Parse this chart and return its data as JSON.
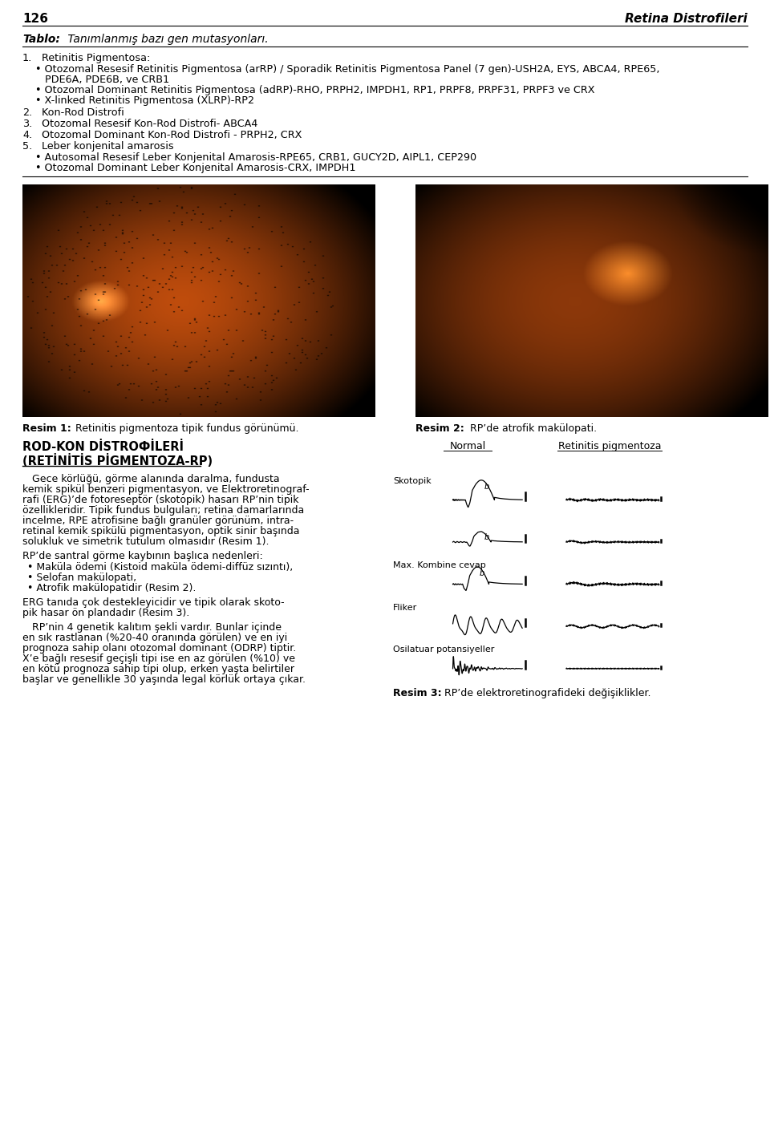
{
  "page_num": "126",
  "page_title": "Retina Distrofileri",
  "table_title_bold": "Tablo:",
  "table_title_rest": " Tanımlanmış bazı gen mutasyonları.",
  "numbered_items": [
    {
      "num": "1.",
      "title": "  Retinitis Pigmentosa:",
      "bullets": [
        "• Otozomal Resesif Retinitis Pigmentosa (arRP) / Sporadik Retinitis Pigmentosa Panel (7 gen)-USH2A, EYS, ABCA4, RPE65,",
        "   PDE6A, PDE6B, ve CRB1",
        "• Otozomal Dominant Retinitis Pigmentosa (adRP)-RHO, PRPH2, IMPDH1, RP1, PRPF8, PRPF31, PRPF3 ve CRX",
        "• X-linked Retinitis Pigmentosa (XLRP)-RP2"
      ]
    },
    {
      "num": "2.",
      "title": "  Kon-Rod Distrofi",
      "bullets": []
    },
    {
      "num": "3.",
      "title": "  Otozomal Resesif Kon-Rod Distrofi- ABCA4",
      "bullets": []
    },
    {
      "num": "4.",
      "title": "  Otozomal Dominant Kon-Rod Distrofi - PRPH2, CRX",
      "bullets": []
    },
    {
      "num": "5.",
      "title": "  Leber konjenital amarosis",
      "bullets": [
        "• Autosomal Resesif Leber Konjenital Amarosis-RPE65, CRB1, GUCY2D, AIPL1, CEP290",
        "• Otozomal Dominant Leber Konjenital Amarosis-CRX, IMPDH1"
      ]
    }
  ],
  "resim1_caption_bold": "Resim 1:",
  "resim1_caption_rest": " Retinitis pigmentoza tipik fundus görünümü.",
  "resim2_caption_bold": "Resim 2:",
  "resim2_caption_rest": " RP’de atrofik makülopati.",
  "section_title_line1": "ROD-KON DİSTROФİLERİ",
  "section_title_line1_real": "ROD-KON DİSTROФİLERİ",
  "section_title_line2": "(RETİNİTİS PİGMENTOZA-RP)",
  "body_lines": [
    "   Gece körlüğü, görme alanında daralma, fundusta",
    "kemik spikül benzeri pigmentasyon, ve Elektroretinograf-",
    "rafi (ERG)’de fotoreseptör (skotopik) hasarı RP’nin tipik",
    "özellikleridir. Tipik fundus bulguları; retina damarlarında",
    "incelme, RPE atrofisine bağlı granüler görünüm, intra-",
    "retinal kemik spikülü pigmentasyon, optik sinir başında",
    "solukluk ve simetrik tutulum olmasıdır (Resim 1)."
  ],
  "rp_subtext1": "RP’de santral görme kaybının başlıca nedenleri:",
  "rp_bullets": [
    "Maküla ödemi (Kistoid maküla ödemi-diffüz sızıntı),",
    "Selofan makülopati,",
    "Atrofik makülopatidir (Resim 2)."
  ],
  "erg_text_lines": [
    "ERG tanıda çok destekleyicidir ve tipik olarak skoto-",
    "pik hasar ön plandadır (Resim 3)."
  ],
  "genetic_lines": [
    "   RP’nin 4 genetik kalıtım şekli vardır. Bunlar içinde",
    "en sık rastlanan (%20-40 oranında görülen) ve en iyi",
    "prognoza sahip olanı otozomal dominant (ODRP) tiptir.",
    "X’e bağlı resesif geçişli tipi ise en az görülen (%10) ve",
    "en kötü prognoza sahip tipi olup, erken yaşta belirtiler",
    "başlar ve genellikle 30 yaşında legal körlük ortaya çıkar."
  ],
  "erg_label_normal": "Normal",
  "erg_label_rp": "Retinitis pigmentoza",
  "erg_skotopik": "Skotopik",
  "erg_max": "Max. Kombine cevap",
  "erg_fliker": "Fliker",
  "erg_osilatuar": "Osilatuar potansiyeller",
  "resim3_caption_bold": "Resim 3:",
  "resim3_caption_rest": " RP’de elektroretinografideki değişiklikler.",
  "bg_color": "#ffffff",
  "text_color": "#000000"
}
